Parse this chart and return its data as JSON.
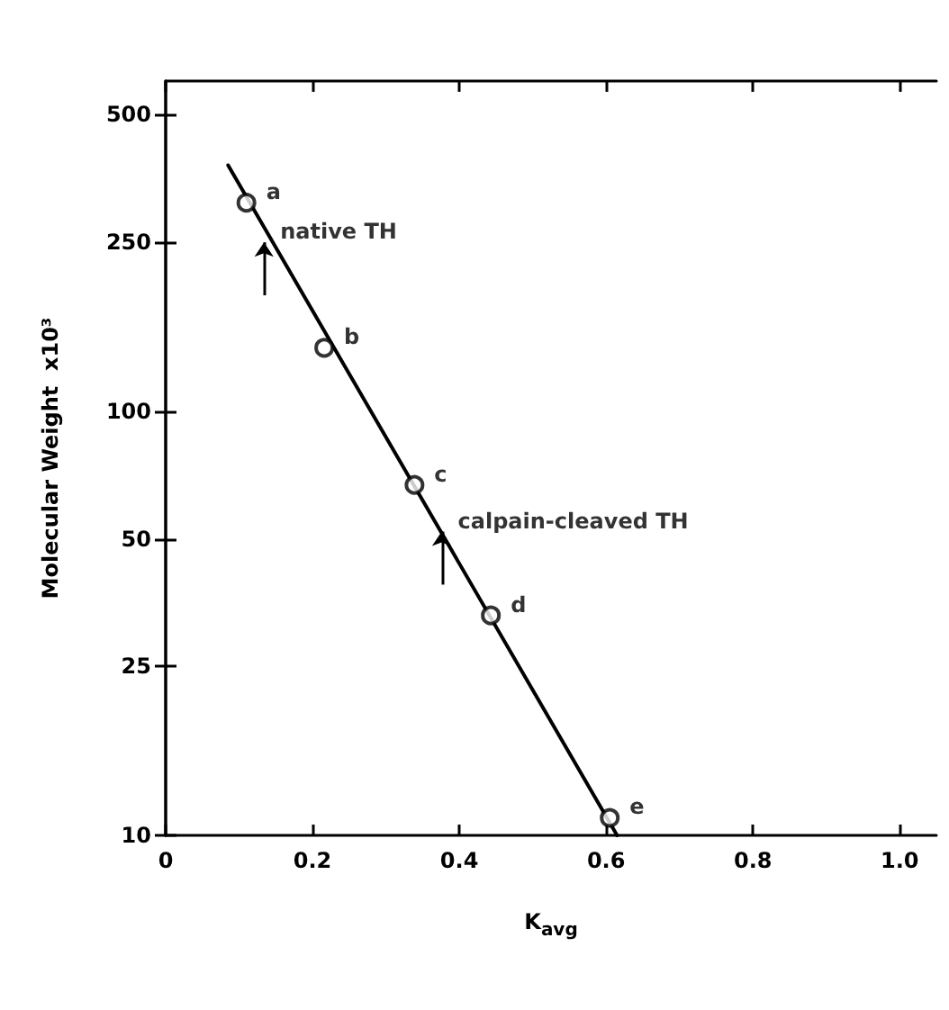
{
  "chart_data": {
    "type": "scatter",
    "xlabel": "K$_{avg}$",
    "ylabel": "Molecular Weight  x10³",
    "log": "y",
    "xlim": [
      0,
      1.05
    ],
    "ylim": [
      10,
      600
    ],
    "xticks": [
      0,
      0.2,
      0.4,
      0.6,
      0.8,
      {
        "value": 1,
        "label": "1.0"
      }
    ],
    "yticks": [
      10,
      25,
      50,
      100,
      250,
      500
    ],
    "grid": false,
    "series": [
      {
        "color": "#000000",
        "marker": "circle",
        "x": [
          0.11,
          0.216,
          0.339,
          0.443,
          0.605
        ],
        "values": [
          310,
          141,
          67,
          33,
          11
        ]
      },
      {
        "type": "line",
        "color": "#000000",
        "marker": "none",
        "line_style": "solid",
        "x": [
          0.085,
          0.615
        ],
        "values": [
          380,
          10
        ]
      }
    ],
    "annotations": [
      {
        "text": "a",
        "x": 0.11,
        "y": 310
      },
      {
        "text": "b",
        "x": 0.216,
        "y": 141
      },
      {
        "text": "c",
        "x": 0.339,
        "y": 67
      },
      {
        "text": "d",
        "x": 0.443,
        "y": 33
      },
      {
        "text": "e",
        "x": 0.605,
        "y": 11
      },
      {
        "text": "native TH",
        "x": 0.134,
        "y": 250
      },
      {
        "text": "calpain-cleaved TH",
        "x": 0.376,
        "y": 52
      }
    ]
  }
}
